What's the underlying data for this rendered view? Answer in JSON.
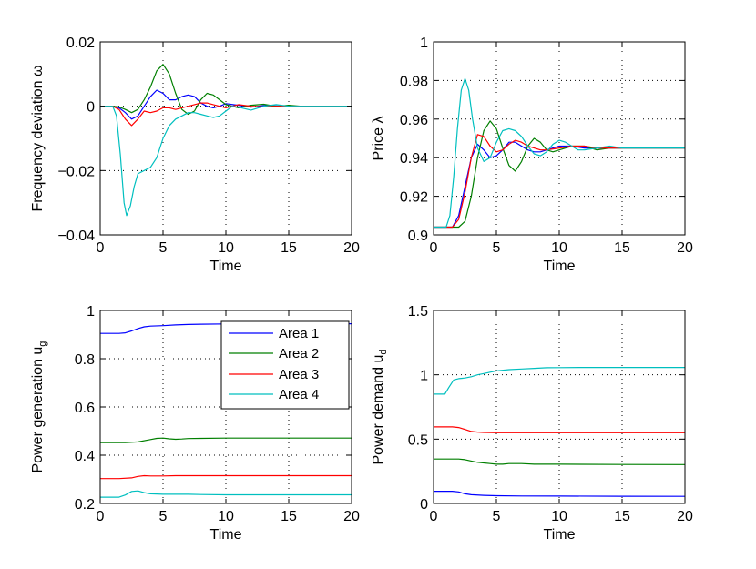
{
  "legend": {
    "entries": [
      {
        "name": "Area 1",
        "color": "#0000ff"
      },
      {
        "name": "Area 2",
        "color": "#007f00"
      },
      {
        "name": "Area 3",
        "color": "#ff0000"
      },
      {
        "name": "Area 4",
        "color": "#00bfbf"
      }
    ]
  },
  "chart_data": [
    {
      "type": "line",
      "xlabel": "Time",
      "ylabel": "Frequency deviation ω",
      "xlim": [
        0,
        20
      ],
      "ylim": [
        -0.04,
        0.02
      ],
      "xticks": [
        0,
        5,
        10,
        15,
        20
      ],
      "xtick_labels": [
        "0",
        "5",
        "10",
        "15",
        "20"
      ],
      "yticks": [
        -0.04,
        -0.02,
        0,
        0.02
      ],
      "ytick_labels": [
        "−0.04",
        "−0.02",
        "0",
        "0.02"
      ],
      "grid": true,
      "series": [
        {
          "name": "Area 1",
          "x": [
            0,
            1,
            1.5,
            2,
            2.5,
            3,
            3.5,
            4,
            4.5,
            5,
            5.5,
            6,
            6.5,
            7,
            7.5,
            8,
            8.5,
            9,
            9.5,
            10,
            11,
            12,
            13,
            14,
            15,
            16,
            17,
            18,
            19,
            20
          ],
          "y": [
            0,
            0,
            -0.0005,
            -0.002,
            -0.004,
            -0.003,
            0,
            0.003,
            0.005,
            0.004,
            0.002,
            0.002,
            0.003,
            0.0035,
            0.003,
            0.001,
            0,
            -0.0005,
            0,
            0.0008,
            0.0003,
            -0.0003,
            0.0002,
            0.0001,
            0,
            0,
            0,
            0,
            0,
            0
          ]
        },
        {
          "name": "Area 2",
          "x": [
            0,
            1,
            1.5,
            2,
            2.5,
            3,
            3.5,
            4,
            4.5,
            5,
            5.5,
            6,
            6.5,
            7,
            7.5,
            8,
            8.5,
            9,
            9.5,
            10,
            11,
            12,
            13,
            14,
            15,
            16,
            17,
            18,
            19,
            20
          ],
          "y": [
            0,
            0,
            -0.0002,
            -0.001,
            -0.002,
            -0.001,
            0.002,
            0.006,
            0.011,
            0.013,
            0.01,
            0.004,
            -0.001,
            -0.0025,
            -0.0015,
            0.002,
            0.004,
            0.0035,
            0.002,
            0.0005,
            -0.0005,
            0.0003,
            0.0006,
            0,
            0.0003,
            0,
            0,
            0,
            0,
            0
          ]
        },
        {
          "name": "Area 3",
          "x": [
            0,
            1,
            1.5,
            2,
            2.5,
            3,
            3.5,
            4,
            4.5,
            5,
            5.5,
            6,
            6.5,
            7,
            7.5,
            8,
            8.5,
            9,
            9.5,
            10,
            11,
            12,
            13,
            14,
            15,
            16,
            17,
            18,
            19,
            20
          ],
          "y": [
            0,
            0,
            -0.001,
            -0.004,
            -0.006,
            -0.004,
            -0.0015,
            -0.002,
            -0.0015,
            -0.0005,
            -0.0005,
            -0.001,
            -0.0005,
            0,
            0.0005,
            0.001,
            0.001,
            0.0005,
            0,
            -0.0005,
            0.0005,
            0,
            -0.0002,
            0,
            0,
            0,
            0,
            0,
            0,
            0
          ]
        },
        {
          "name": "Area 4",
          "x": [
            0,
            1,
            1.3,
            1.6,
            1.9,
            2.1,
            2.4,
            2.7,
            3,
            3.5,
            4,
            4.5,
            5,
            5.5,
            6,
            6.5,
            7,
            7.5,
            8,
            8.5,
            9,
            9.5,
            10,
            10.5,
            11,
            12,
            13,
            14,
            15,
            16,
            17,
            18,
            19,
            20
          ],
          "y": [
            0,
            0,
            -0.003,
            -0.015,
            -0.03,
            -0.034,
            -0.031,
            -0.025,
            -0.021,
            -0.02,
            -0.019,
            -0.016,
            -0.01,
            -0.006,
            -0.004,
            -0.003,
            -0.002,
            -0.002,
            -0.0025,
            -0.003,
            -0.0035,
            -0.003,
            -0.0015,
            0,
            -0.0003,
            -0.0012,
            0,
            0.0005,
            0,
            0,
            0,
            0,
            0,
            0
          ]
        }
      ]
    },
    {
      "type": "line",
      "xlabel": "Time",
      "ylabel": "Price λ",
      "xlim": [
        0,
        20
      ],
      "ylim": [
        0.9,
        1
      ],
      "xticks": [
        0,
        5,
        10,
        15,
        20
      ],
      "xtick_labels": [
        "0",
        "5",
        "10",
        "15",
        "20"
      ],
      "yticks": [
        0.9,
        0.92,
        0.94,
        0.96,
        0.98,
        1
      ],
      "ytick_labels": [
        "0.9",
        "0.92",
        "0.94",
        "0.96",
        "0.98",
        "1"
      ],
      "grid": true,
      "series": [
        {
          "name": "Area 1",
          "x": [
            0,
            1.5,
            2,
            2.5,
            3,
            3.5,
            4,
            4.5,
            5,
            5.5,
            6,
            6.5,
            7,
            7.5,
            8,
            8.5,
            9,
            9.5,
            10,
            11,
            12,
            13,
            14,
            15,
            16,
            17,
            18,
            19,
            20
          ],
          "y": [
            0.904,
            0.904,
            0.91,
            0.925,
            0.94,
            0.947,
            0.944,
            0.94,
            0.941,
            0.944,
            0.948,
            0.948,
            0.946,
            0.944,
            0.943,
            0.943,
            0.944,
            0.945,
            0.946,
            0.946,
            0.945,
            0.945,
            0.945,
            0.945,
            0.945,
            0.945,
            0.945,
            0.945,
            0.945
          ]
        },
        {
          "name": "Area 2",
          "x": [
            0,
            2,
            2.5,
            3,
            3.5,
            4,
            4.5,
            5,
            5.5,
            6,
            6.5,
            7,
            7.5,
            8,
            8.5,
            9,
            9.5,
            10,
            11,
            12,
            13,
            14,
            15,
            16,
            17,
            18,
            19,
            20
          ],
          "y": [
            0.904,
            0.904,
            0.907,
            0.92,
            0.94,
            0.954,
            0.959,
            0.955,
            0.945,
            0.936,
            0.933,
            0.938,
            0.946,
            0.95,
            0.948,
            0.944,
            0.943,
            0.944,
            0.946,
            0.946,
            0.944,
            0.945,
            0.945,
            0.945,
            0.945,
            0.945,
            0.945,
            0.945
          ]
        },
        {
          "name": "Area 3",
          "x": [
            0,
            1.5,
            2,
            2.5,
            3,
            3.5,
            4,
            4.5,
            5,
            5.5,
            6,
            6.5,
            7,
            7.5,
            8,
            8.5,
            9,
            10,
            11,
            12,
            13,
            14,
            15,
            16,
            17,
            18,
            19,
            20
          ],
          "y": [
            0.904,
            0.904,
            0.908,
            0.922,
            0.94,
            0.952,
            0.951,
            0.946,
            0.943,
            0.944,
            0.947,
            0.949,
            0.948,
            0.946,
            0.945,
            0.944,
            0.944,
            0.945,
            0.946,
            0.946,
            0.945,
            0.945,
            0.945,
            0.945,
            0.945,
            0.945,
            0.945,
            0.945
          ]
        },
        {
          "name": "Area 4",
          "x": [
            0,
            1,
            1.3,
            1.6,
            1.9,
            2.2,
            2.5,
            2.8,
            3.1,
            3.5,
            4,
            4.5,
            5,
            5.5,
            6,
            6.5,
            7,
            7.5,
            8,
            8.5,
            9,
            9.5,
            10,
            10.5,
            11,
            11.5,
            12,
            13,
            14,
            15,
            16,
            17,
            18,
            19,
            20
          ],
          "y": [
            0.904,
            0.904,
            0.91,
            0.93,
            0.955,
            0.975,
            0.981,
            0.975,
            0.96,
            0.945,
            0.938,
            0.94,
            0.948,
            0.954,
            0.955,
            0.954,
            0.951,
            0.946,
            0.942,
            0.941,
            0.943,
            0.947,
            0.949,
            0.948,
            0.946,
            0.944,
            0.944,
            0.945,
            0.946,
            0.945,
            0.945,
            0.945,
            0.945,
            0.945,
            0.945
          ]
        }
      ]
    },
    {
      "type": "line",
      "xlabel": "Time",
      "ylabel": "Power generation u_g",
      "ylabel_main": "Power generation u",
      "ylabel_sub": "g",
      "xlim": [
        0,
        20
      ],
      "ylim": [
        0.2,
        1
      ],
      "xticks": [
        0,
        5,
        10,
        15,
        20
      ],
      "xtick_labels": [
        "0",
        "5",
        "10",
        "15",
        "20"
      ],
      "yticks": [
        0.2,
        0.4,
        0.6,
        0.8,
        1
      ],
      "ytick_labels": [
        "0.2",
        "0.4",
        "0.6",
        "0.8",
        "1"
      ],
      "grid": true,
      "legend_position": "top-right",
      "series": [
        {
          "name": "Area 1",
          "x": [
            0,
            1.5,
            2,
            2.5,
            3,
            3.5,
            4,
            5,
            6,
            7,
            8,
            10,
            12,
            15,
            20
          ],
          "y": [
            0.905,
            0.905,
            0.907,
            0.915,
            0.925,
            0.932,
            0.935,
            0.937,
            0.94,
            0.942,
            0.943,
            0.944,
            0.945,
            0.945,
            0.945
          ]
        },
        {
          "name": "Area 2",
          "x": [
            0,
            2,
            3,
            4,
            4.5,
            5,
            5.5,
            6,
            6.5,
            7,
            8,
            10,
            15,
            20
          ],
          "y": [
            0.452,
            0.452,
            0.455,
            0.465,
            0.47,
            0.471,
            0.468,
            0.466,
            0.467,
            0.469,
            0.47,
            0.471,
            0.471,
            0.471
          ]
        },
        {
          "name": "Area 3",
          "x": [
            0,
            1.5,
            2.5,
            3,
            3.5,
            4,
            5,
            6,
            7,
            8,
            10,
            15,
            20
          ],
          "y": [
            0.303,
            0.303,
            0.306,
            0.312,
            0.315,
            0.314,
            0.314,
            0.315,
            0.315,
            0.315,
            0.315,
            0.315,
            0.315
          ]
        },
        {
          "name": "Area 4",
          "x": [
            0,
            1.5,
            2,
            2.5,
            3,
            3.5,
            4,
            5,
            6,
            7,
            8,
            10,
            15,
            20
          ],
          "y": [
            0.226,
            0.226,
            0.235,
            0.25,
            0.252,
            0.245,
            0.24,
            0.238,
            0.238,
            0.238,
            0.237,
            0.236,
            0.236,
            0.236
          ]
        }
      ]
    },
    {
      "type": "line",
      "xlabel": "Time",
      "ylabel": "Power demand u_d",
      "ylabel_main": "Power demand u",
      "ylabel_sub": "d",
      "xlim": [
        0,
        20
      ],
      "ylim": [
        0,
        1.5
      ],
      "xticks": [
        0,
        5,
        10,
        15,
        20
      ],
      "xtick_labels": [
        "0",
        "5",
        "10",
        "15",
        "20"
      ],
      "yticks": [
        0,
        0.5,
        1,
        1.5
      ],
      "ytick_labels": [
        "0",
        "0.5",
        "1",
        "1.5"
      ],
      "grid": true,
      "series": [
        {
          "name": "Area 1",
          "x": [
            0,
            1.5,
            2,
            2.5,
            3,
            4,
            5,
            7,
            10,
            15,
            20
          ],
          "y": [
            0.095,
            0.095,
            0.09,
            0.075,
            0.068,
            0.063,
            0.06,
            0.058,
            0.057,
            0.056,
            0.055
          ]
        },
        {
          "name": "Area 2",
          "x": [
            0,
            1.5,
            2,
            2.5,
            3,
            3.5,
            4,
            4.5,
            5,
            5.5,
            6,
            7,
            8,
            10,
            15,
            20
          ],
          "y": [
            0.345,
            0.345,
            0.345,
            0.34,
            0.33,
            0.32,
            0.315,
            0.31,
            0.305,
            0.305,
            0.31,
            0.31,
            0.305,
            0.305,
            0.303,
            0.302
          ]
        },
        {
          "name": "Area 3",
          "x": [
            0,
            1.5,
            2,
            2.5,
            3,
            3.5,
            4,
            5,
            6,
            7,
            10,
            15,
            20
          ],
          "y": [
            0.595,
            0.595,
            0.59,
            0.575,
            0.56,
            0.555,
            0.552,
            0.55,
            0.55,
            0.55,
            0.55,
            0.55,
            0.55
          ]
        },
        {
          "name": "Area 4",
          "x": [
            0,
            0.9,
            1.2,
            1.6,
            2,
            2.5,
            3,
            3.5,
            4,
            4.5,
            5,
            6,
            7,
            8,
            9,
            10,
            12,
            15,
            20
          ],
          "y": [
            0.85,
            0.85,
            0.9,
            0.96,
            0.97,
            0.975,
            0.985,
            1.0,
            1.01,
            1.02,
            1.03,
            1.04,
            1.045,
            1.05,
            1.055,
            1.056,
            1.057,
            1.057,
            1.057
          ]
        }
      ]
    }
  ]
}
